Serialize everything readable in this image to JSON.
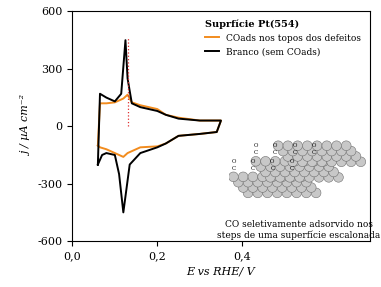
{
  "chart_data": {
    "type": "line",
    "title": "Suprfície Pt(554)",
    "x_label": "E vs RHE/ V",
    "y_label": "j / µA cm⁻²",
    "xlim": [
      0,
      0.7
    ],
    "ylim": [
      -600,
      600
    ],
    "xticks": [
      {
        "value": 0,
        "label": "0,0"
      },
      {
        "value": 0.2,
        "label": "0,2"
      },
      {
        "value": 0.4,
        "label": "0,4"
      }
    ],
    "yticks": [
      -600,
      -300,
      0,
      300,
      600
    ],
    "legend": "upper right",
    "series": [
      {
        "name": "COads nos topos dos defeitos",
        "color": "#f28c1e",
        "line_style": "solid",
        "x": [
          0.06,
          0.065,
          0.08,
          0.1,
          0.12,
          0.13,
          0.14,
          0.16,
          0.2,
          0.22,
          0.25,
          0.3,
          0.35,
          0.34,
          0.3,
          0.25,
          0.22,
          0.2,
          0.16,
          0.13,
          0.12,
          0.1,
          0.08,
          0.065,
          0.06
        ],
        "values": [
          -100,
          120,
          120,
          125,
          145,
          165,
          125,
          110,
          90,
          60,
          45,
          30,
          30,
          -30,
          -40,
          -50,
          -90,
          -105,
          -110,
          -140,
          -160,
          -140,
          -120,
          -110,
          -100
        ]
      },
      {
        "name": "Branco (sem COads)",
        "color": "#000000",
        "line_style": "solid",
        "x": [
          0.06,
          0.065,
          0.08,
          0.1,
          0.115,
          0.125,
          0.13,
          0.14,
          0.16,
          0.2,
          0.22,
          0.25,
          0.3,
          0.35,
          0.34,
          0.3,
          0.25,
          0.22,
          0.2,
          0.16,
          0.135,
          0.12,
          0.11,
          0.1,
          0.08,
          0.07,
          0.06
        ],
        "values": [
          -200,
          170,
          150,
          130,
          170,
          450,
          250,
          120,
          100,
          80,
          60,
          40,
          30,
          30,
          -30,
          -40,
          -50,
          -90,
          -110,
          -140,
          -200,
          -450,
          -250,
          -150,
          -140,
          -150,
          -200
        ]
      }
    ],
    "reference_line": {
      "x": 0.13,
      "y": [
        0,
        460
      ],
      "color": "#e03030",
      "line_style": "dotted"
    },
    "annotation": "CO seletivamente adsorvido nos\nsteps de uma superfície escalonada",
    "illustration": {
      "atoms": [
        "C",
        "O"
      ]
    }
  }
}
